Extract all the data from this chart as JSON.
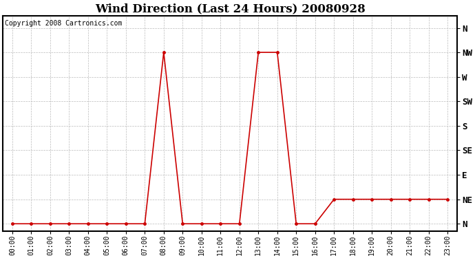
{
  "title": "Wind Direction (Last 24 Hours) 20080928",
  "copyright": "Copyright 2008 Cartronics.com",
  "line_color": "#cc0000",
  "marker": "o",
  "marker_size": 2.5,
  "bg_color": "#ffffff",
  "grid_color": "#bbbbbb",
  "hours": [
    0,
    1,
    2,
    3,
    4,
    5,
    6,
    7,
    8,
    9,
    10,
    11,
    12,
    13,
    14,
    15,
    16,
    17,
    18,
    19,
    20,
    21,
    22,
    23
  ],
  "values": [
    0,
    0,
    0,
    0,
    0,
    0,
    0,
    0,
    7,
    0,
    0,
    0,
    0,
    7,
    7,
    0,
    0,
    1,
    1,
    1,
    1,
    1,
    1,
    1
  ],
  "yticks": [
    0,
    1,
    2,
    3,
    4,
    5,
    6,
    7,
    8
  ],
  "ylabels": [
    "N",
    "NE",
    "E",
    "SE",
    "S",
    "SW",
    "W",
    "NW",
    "N"
  ],
  "ylabel_fontsize": 9,
  "xlabel_fontsize": 7,
  "title_fontsize": 12,
  "copyright_fontsize": 7
}
